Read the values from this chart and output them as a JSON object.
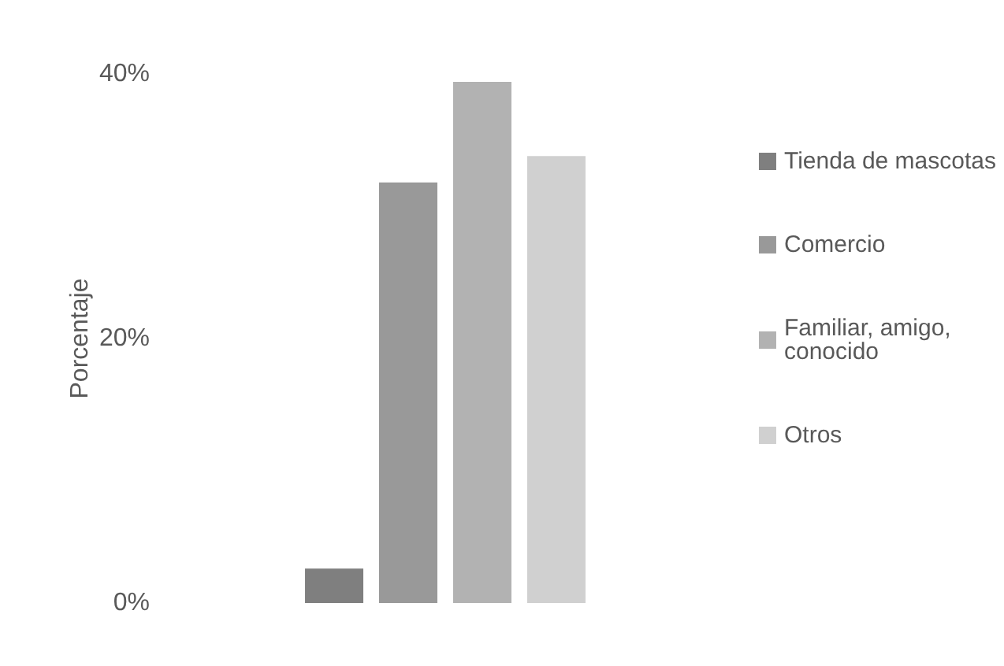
{
  "chart_data": {
    "type": "bar",
    "ylabel": "Porcentaje",
    "categories": [
      null
    ],
    "series": [
      {
        "name": "Tienda de mascotas",
        "color": "#7f7f7f",
        "values": [
          2.6
        ]
      },
      {
        "name": "Comercio",
        "color": "#999999",
        "values": [
          31.8
        ]
      },
      {
        "name": "Familiar, amigo, conocido",
        "color": "#b2b2b2",
        "values": [
          39.4
        ]
      },
      {
        "name": "Otros",
        "color": "#d0d0d0",
        "values": [
          33.8
        ]
      }
    ],
    "ylim": [
      0,
      40
    ],
    "yticks": [
      {
        "value": 0,
        "label": "0%"
      },
      {
        "value": 20,
        "label": "20%"
      },
      {
        "value": 40,
        "label": "40%"
      }
    ],
    "grid": false,
    "legend": "right"
  }
}
